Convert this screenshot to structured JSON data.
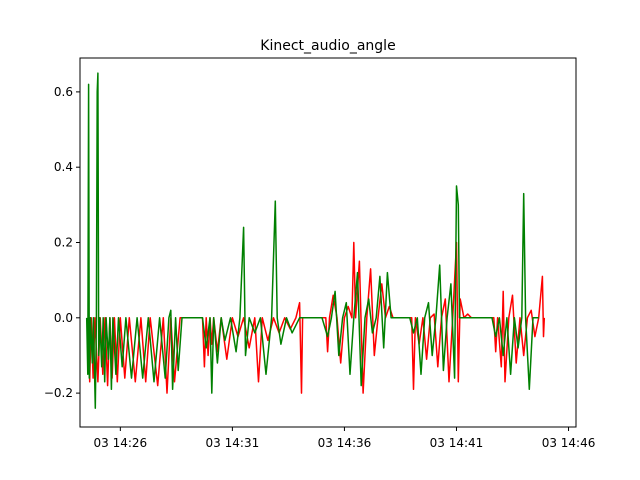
{
  "chart_data": {
    "type": "line",
    "title": "Kinect_audio_angle",
    "xlabel": "",
    "ylabel": "",
    "grid": false,
    "legend": "none",
    "x_unit": "time (day 03)",
    "xlim": [
      "14:24:12",
      "14:46:20"
    ],
    "ylim": [
      -0.29,
      0.69
    ],
    "x_ticks": [
      "03 14:26",
      "03 14:31",
      "03 14:36",
      "03 14:41",
      "03 14:46"
    ],
    "y_ticks": [
      -0.2,
      0.0,
      0.2,
      0.4,
      0.6
    ],
    "y_tick_labels": [
      "−0.2",
      "0.0",
      "0.2",
      "0.4",
      "0.6"
    ],
    "colors": {
      "series_red": "#ff0000",
      "series_green": "#008000",
      "frame": "#000000"
    },
    "series": [
      {
        "color": "#ff0000",
        "points": [
          [
            "14:24:35",
            0.0
          ],
          [
            "14:24:38",
            -0.17
          ],
          [
            "14:24:42",
            0.0
          ],
          [
            "14:24:47",
            -0.16
          ],
          [
            "14:24:52",
            0.0
          ],
          [
            "14:25:00",
            -0.17
          ],
          [
            "14:25:06",
            0.0
          ],
          [
            "14:25:13",
            -0.15
          ],
          [
            "14:25:19",
            0.0
          ],
          [
            "14:25:26",
            -0.18
          ],
          [
            "14:25:32",
            0.0
          ],
          [
            "14:25:38",
            -0.16
          ],
          [
            "14:25:44",
            0.0
          ],
          [
            "14:25:52",
            -0.17
          ],
          [
            "14:26:00",
            0.0
          ],
          [
            "14:26:12",
            -0.16
          ],
          [
            "14:26:24",
            0.0
          ],
          [
            "14:26:40",
            -0.17
          ],
          [
            "14:26:55",
            0.0
          ],
          [
            "14:27:08",
            -0.17
          ],
          [
            "14:27:20",
            0.0
          ],
          [
            "14:27:40",
            -0.18
          ],
          [
            "14:27:55",
            0.0
          ],
          [
            "14:28:05",
            -0.2
          ],
          [
            "14:28:15",
            0.0
          ],
          [
            "14:28:25",
            -0.17
          ],
          [
            "14:28:40",
            0.0
          ],
          [
            "14:29:40",
            0.0
          ],
          [
            "14:29:45",
            -0.13
          ],
          [
            "14:29:50",
            0.0
          ],
          [
            "14:29:55",
            -0.1
          ],
          [
            "14:30:00",
            0.0
          ],
          [
            "14:30:05",
            -0.07
          ],
          [
            "14:30:10",
            0.0
          ],
          [
            "14:30:20",
            -0.09
          ],
          [
            "14:30:30",
            0.0
          ],
          [
            "14:30:45",
            -0.11
          ],
          [
            "14:31:00",
            0.0
          ],
          [
            "14:31:15",
            -0.05
          ],
          [
            "14:31:30",
            0.0
          ],
          [
            "14:31:45",
            -0.08
          ],
          [
            "14:32:00",
            0.0
          ],
          [
            "14:32:10",
            -0.17
          ],
          [
            "14:32:20",
            0.0
          ],
          [
            "14:32:35",
            -0.06
          ],
          [
            "14:32:50",
            0.0
          ],
          [
            "14:33:05",
            -0.04
          ],
          [
            "14:33:20",
            0.0
          ],
          [
            "14:33:35",
            -0.03
          ],
          [
            "14:33:50",
            0.0
          ],
          [
            "14:34:00",
            0.04
          ],
          [
            "14:34:05",
            -0.2
          ],
          [
            "14:34:08",
            0.0
          ],
          [
            "14:35:10",
            0.0
          ],
          [
            "14:35:15",
            -0.09
          ],
          [
            "14:35:20",
            0.0
          ],
          [
            "14:35:30",
            0.06
          ],
          [
            "14:35:40",
            0.0
          ],
          [
            "14:35:50",
            -0.12
          ],
          [
            "14:36:00",
            0.0
          ],
          [
            "14:36:10",
            0.03
          ],
          [
            "14:36:20",
            0.0
          ],
          [
            "14:36:25",
            0.2
          ],
          [
            "14:36:30",
            0.0
          ],
          [
            "14:36:40",
            0.15
          ],
          [
            "14:36:50",
            -0.2
          ],
          [
            "14:37:00",
            0.0
          ],
          [
            "14:37:10",
            0.13
          ],
          [
            "14:37:20",
            -0.1
          ],
          [
            "14:37:30",
            0.0
          ],
          [
            "14:37:40",
            0.09
          ],
          [
            "14:37:50",
            0.0
          ],
          [
            "14:38:00",
            0.03
          ],
          [
            "14:38:10",
            0.0
          ],
          [
            "14:39:00",
            0.0
          ],
          [
            "14:39:05",
            -0.19
          ],
          [
            "14:39:10",
            0.0
          ],
          [
            "14:39:20",
            -0.07
          ],
          [
            "14:39:30",
            0.0
          ],
          [
            "14:39:40",
            -0.11
          ],
          [
            "14:39:50",
            0.0
          ],
          [
            "14:40:00",
            0.01
          ],
          [
            "14:40:10",
            -0.13
          ],
          [
            "14:40:20",
            0.0
          ],
          [
            "14:40:30",
            0.05
          ],
          [
            "14:40:40",
            -0.17
          ],
          [
            "14:40:50",
            0.0
          ],
          [
            "14:41:00",
            0.2
          ],
          [
            "14:41:05",
            -0.17
          ],
          [
            "14:41:10",
            0.05
          ],
          [
            "14:41:20",
            0.0
          ],
          [
            "14:41:30",
            0.01
          ],
          [
            "14:41:40",
            0.0
          ],
          [
            "14:42:40",
            0.0
          ],
          [
            "14:42:45",
            -0.09
          ],
          [
            "14:42:50",
            0.0
          ],
          [
            "14:43:00",
            -0.13
          ],
          [
            "14:43:05",
            0.07
          ],
          [
            "14:43:10",
            -0.17
          ],
          [
            "14:43:20",
            0.0
          ],
          [
            "14:43:30",
            0.06
          ],
          [
            "14:43:40",
            -0.12
          ],
          [
            "14:43:50",
            0.0
          ],
          [
            "14:44:00",
            -0.1
          ],
          [
            "14:44:10",
            0.0
          ],
          [
            "14:44:20",
            0.02
          ],
          [
            "14:44:30",
            -0.05
          ],
          [
            "14:44:40",
            0.0
          ],
          [
            "14:44:50",
            0.11
          ],
          [
            "14:44:53",
            -0.05
          ],
          [
            "14:44:55",
            0.0
          ]
        ]
      },
      {
        "color": "#008000",
        "points": [
          [
            "14:24:30",
            0.0
          ],
          [
            "14:24:33",
            -0.15
          ],
          [
            "14:24:35",
            0.62
          ],
          [
            "14:24:37",
            -0.16
          ],
          [
            "14:24:40",
            0.0
          ],
          [
            "14:24:45",
            -0.12
          ],
          [
            "14:24:48",
            0.0
          ],
          [
            "14:24:53",
            -0.24
          ],
          [
            "14:24:56",
            0.0
          ],
          [
            "14:24:58",
            0.6
          ],
          [
            "14:25:00",
            0.65
          ],
          [
            "14:25:02",
            -0.1
          ],
          [
            "14:25:05",
            0.0
          ],
          [
            "14:25:10",
            -0.13
          ],
          [
            "14:25:14",
            0.0
          ],
          [
            "14:25:18",
            -0.17
          ],
          [
            "14:25:22",
            0.0
          ],
          [
            "14:25:28",
            -0.11
          ],
          [
            "14:25:32",
            0.0
          ],
          [
            "14:25:36",
            -0.19
          ],
          [
            "14:25:40",
            0.0
          ],
          [
            "14:25:48",
            -0.15
          ],
          [
            "14:25:55",
            0.0
          ],
          [
            "14:26:05",
            -0.13
          ],
          [
            "14:26:15",
            0.0
          ],
          [
            "14:26:30",
            -0.16
          ],
          [
            "14:26:45",
            0.0
          ],
          [
            "14:27:00",
            -0.16
          ],
          [
            "14:27:15",
            0.0
          ],
          [
            "14:27:30",
            -0.17
          ],
          [
            "14:27:45",
            0.0
          ],
          [
            "14:28:00",
            -0.16
          ],
          [
            "14:28:10",
            0.0
          ],
          [
            "14:28:15",
            0.02
          ],
          [
            "14:28:20",
            -0.19
          ],
          [
            "14:28:28",
            0.0
          ],
          [
            "14:28:35",
            -0.14
          ],
          [
            "14:28:45",
            0.0
          ],
          [
            "14:29:40",
            0.0
          ],
          [
            "14:29:50",
            -0.08
          ],
          [
            "14:30:00",
            0.0
          ],
          [
            "14:30:05",
            -0.2
          ],
          [
            "14:30:10",
            0.0
          ],
          [
            "14:30:20",
            -0.12
          ],
          [
            "14:30:30",
            0.0
          ],
          [
            "14:30:40",
            -0.06
          ],
          [
            "14:30:55",
            0.0
          ],
          [
            "14:31:10",
            -0.09
          ],
          [
            "14:31:20",
            0.0
          ],
          [
            "14:31:30",
            0.24
          ],
          [
            "14:31:35",
            -0.1
          ],
          [
            "14:31:45",
            0.0
          ],
          [
            "14:32:00",
            -0.04
          ],
          [
            "14:32:15",
            0.0
          ],
          [
            "14:32:30",
            -0.15
          ],
          [
            "14:32:45",
            0.0
          ],
          [
            "14:32:55",
            0.31
          ],
          [
            "14:33:00",
            0.0
          ],
          [
            "14:33:10",
            -0.07
          ],
          [
            "14:33:25",
            0.0
          ],
          [
            "14:33:40",
            -0.04
          ],
          [
            "14:34:00",
            0.0
          ],
          [
            "14:35:00",
            0.0
          ],
          [
            "14:35:15",
            -0.05
          ],
          [
            "14:35:25",
            0.0
          ],
          [
            "14:35:35",
            0.07
          ],
          [
            "14:35:45",
            -0.1
          ],
          [
            "14:35:55",
            0.0
          ],
          [
            "14:36:05",
            0.04
          ],
          [
            "14:36:15",
            -0.15
          ],
          [
            "14:36:25",
            0.0
          ],
          [
            "14:36:35",
            0.12
          ],
          [
            "14:36:45",
            -0.18
          ],
          [
            "14:36:55",
            0.0
          ],
          [
            "14:37:05",
            0.05
          ],
          [
            "14:37:15",
            -0.04
          ],
          [
            "14:37:25",
            0.0
          ],
          [
            "14:37:35",
            0.11
          ],
          [
            "14:37:45",
            -0.08
          ],
          [
            "14:37:55",
            0.12
          ],
          [
            "14:38:05",
            0.0
          ],
          [
            "14:38:55",
            0.0
          ],
          [
            "14:39:05",
            -0.04
          ],
          [
            "14:39:15",
            0.0
          ],
          [
            "14:39:25",
            -0.15
          ],
          [
            "14:39:35",
            0.0
          ],
          [
            "14:39:45",
            0.04
          ],
          [
            "14:39:55",
            -0.1
          ],
          [
            "14:40:05",
            0.0
          ],
          [
            "14:40:15",
            0.14
          ],
          [
            "14:40:25",
            -0.14
          ],
          [
            "14:40:35",
            0.0
          ],
          [
            "14:40:45",
            0.09
          ],
          [
            "14:40:55",
            -0.16
          ],
          [
            "14:41:00",
            0.35
          ],
          [
            "14:41:05",
            0.3
          ],
          [
            "14:41:08",
            0.0
          ],
          [
            "14:41:20",
            0.0
          ],
          [
            "14:42:35",
            0.0
          ],
          [
            "14:42:45",
            -0.05
          ],
          [
            "14:42:55",
            0.0
          ],
          [
            "14:43:05",
            -0.1
          ],
          [
            "14:43:15",
            0.0
          ],
          [
            "14:43:25",
            -0.15
          ],
          [
            "14:43:35",
            0.0
          ],
          [
            "14:43:45",
            -0.08
          ],
          [
            "14:43:55",
            0.0
          ],
          [
            "14:44:00",
            0.33
          ],
          [
            "14:44:05",
            0.0
          ],
          [
            "14:44:15",
            -0.19
          ],
          [
            "14:44:25",
            0.0
          ],
          [
            "14:44:40",
            0.0
          ]
        ]
      }
    ]
  }
}
